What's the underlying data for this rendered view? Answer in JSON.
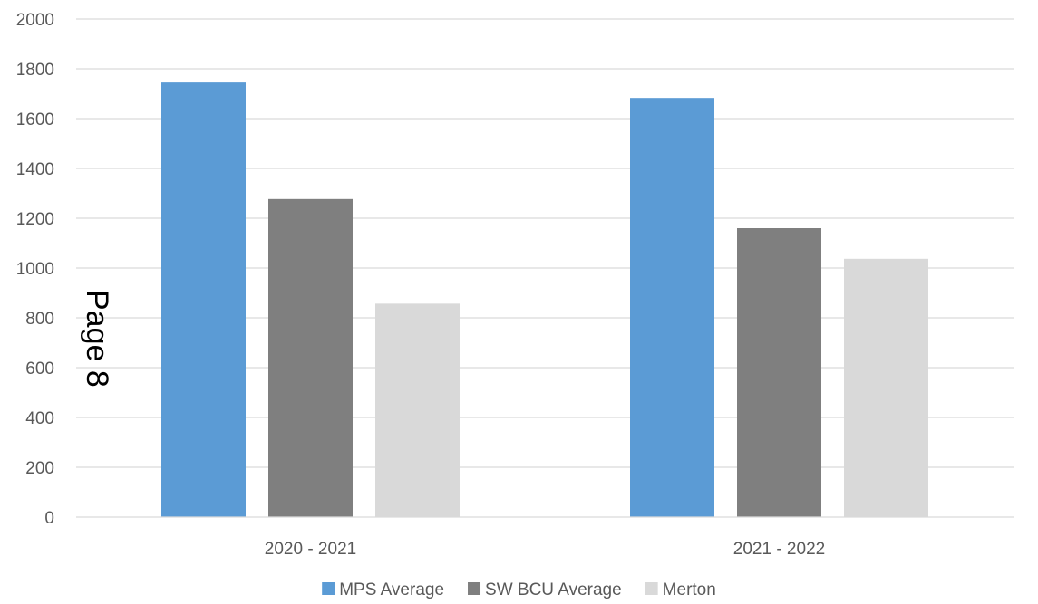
{
  "page_stamp": "Page 8",
  "chart_data": {
    "type": "bar",
    "title": "",
    "xlabel": "",
    "ylabel": "",
    "ylim": [
      0,
      2000
    ],
    "yticks": [
      0,
      200,
      400,
      600,
      800,
      1000,
      1200,
      1400,
      1600,
      1800,
      2000
    ],
    "grid": true,
    "legend_position": "bottom",
    "categories": [
      "2020 - 2021",
      "2021 - 2022"
    ],
    "series": [
      {
        "name": "MPS Average",
        "color": "#5b9bd5",
        "values": [
          1745,
          1683
        ]
      },
      {
        "name": "SW BCU Average",
        "color": "#7f7f7f",
        "values": [
          1277,
          1160
        ]
      },
      {
        "name": "Merton",
        "color": "#d9d9d9",
        "values": [
          857,
          1037
        ]
      }
    ]
  }
}
